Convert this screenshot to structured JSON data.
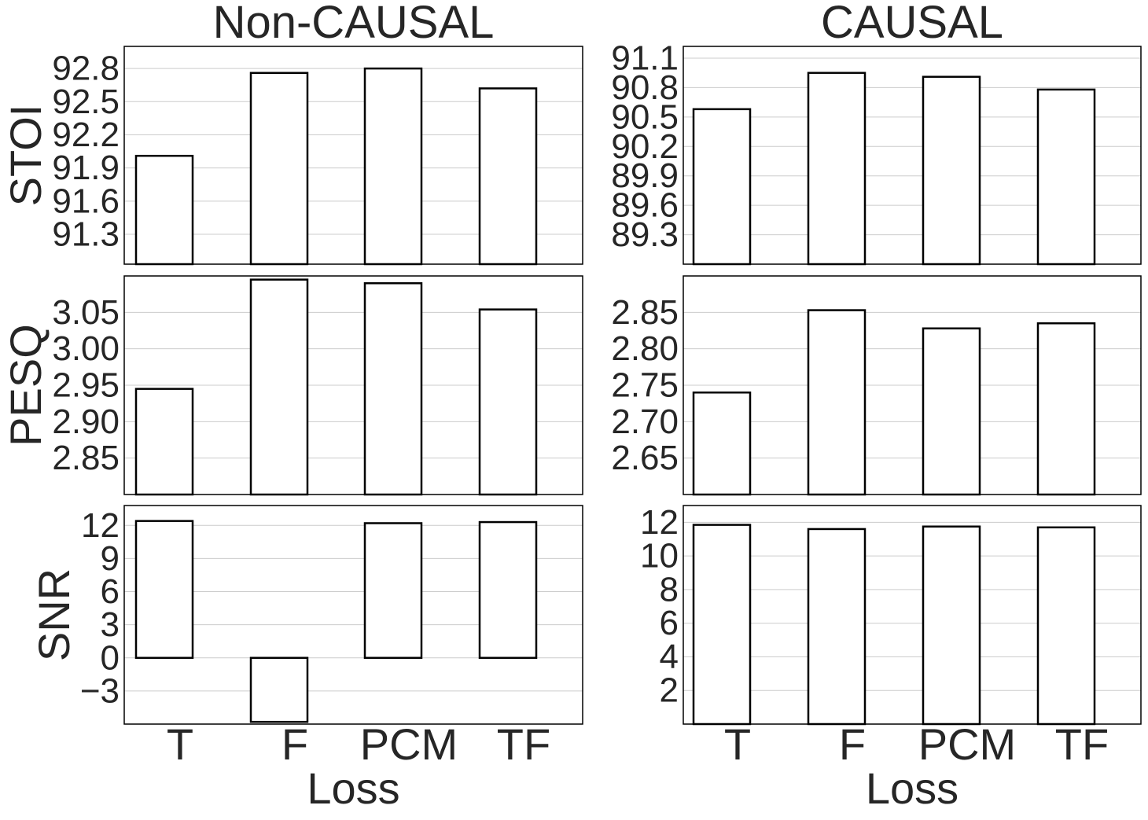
{
  "chart_data": [
    {
      "type": "bar",
      "title": "Non-CAUSAL",
      "ylabel": "STOI",
      "xlabel": "",
      "categories": [
        "T",
        "F",
        "PCM",
        "TF"
      ],
      "values": [
        92.01,
        92.76,
        92.8,
        92.62
      ],
      "ylim": [
        91.03,
        93.0
      ],
      "yticks": [
        "91.3",
        "91.6",
        "91.9",
        "92.2",
        "92.5",
        "92.8"
      ],
      "grid": true
    },
    {
      "type": "bar",
      "title": "CAUSAL",
      "ylabel": "",
      "xlabel": "",
      "categories": [
        "T",
        "F",
        "PCM",
        "TF"
      ],
      "values": [
        90.58,
        90.95,
        90.91,
        90.78
      ],
      "ylim": [
        89.0,
        91.22
      ],
      "yticks": [
        "89.3",
        "89.6",
        "89.9",
        "90.2",
        "90.5",
        "90.8",
        "91.1"
      ],
      "grid": true
    },
    {
      "type": "bar",
      "title": "",
      "ylabel": "PESQ",
      "xlabel": "",
      "categories": [
        "T",
        "F",
        "PCM",
        "TF"
      ],
      "values": [
        2.945,
        3.095,
        3.09,
        3.054
      ],
      "ylim": [
        2.8,
        3.1
      ],
      "yticks": [
        "2.85",
        "2.90",
        "2.95",
        "3.00",
        "3.05"
      ],
      "grid": true
    },
    {
      "type": "bar",
      "title": "",
      "ylabel": "",
      "xlabel": "",
      "categories": [
        "T",
        "F",
        "PCM",
        "TF"
      ],
      "values": [
        2.74,
        2.853,
        2.828,
        2.835
      ],
      "ylim": [
        2.6,
        2.9
      ],
      "yticks": [
        "2.65",
        "2.70",
        "2.75",
        "2.80",
        "2.85"
      ],
      "grid": true
    },
    {
      "type": "bar",
      "title": "",
      "ylabel": "SNR",
      "xlabel": "Loss",
      "categories": [
        "T",
        "F",
        "PCM",
        "TF"
      ],
      "values": [
        12.4,
        -5.8,
        12.2,
        12.3
      ],
      "ylim": [
        -6.0,
        13.8
      ],
      "yticks": [
        "−3",
        "0",
        "3",
        "6",
        "9",
        "12"
      ],
      "grid": true
    },
    {
      "type": "bar",
      "title": "",
      "ylabel": "",
      "xlabel": "Loss",
      "categories": [
        "T",
        "F",
        "PCM",
        "TF"
      ],
      "values": [
        11.85,
        11.6,
        11.75,
        11.7
      ],
      "ylim": [
        0,
        13.0
      ],
      "yticks": [
        "2",
        "4",
        "6",
        "8",
        "10",
        "12"
      ],
      "grid": true
    }
  ]
}
